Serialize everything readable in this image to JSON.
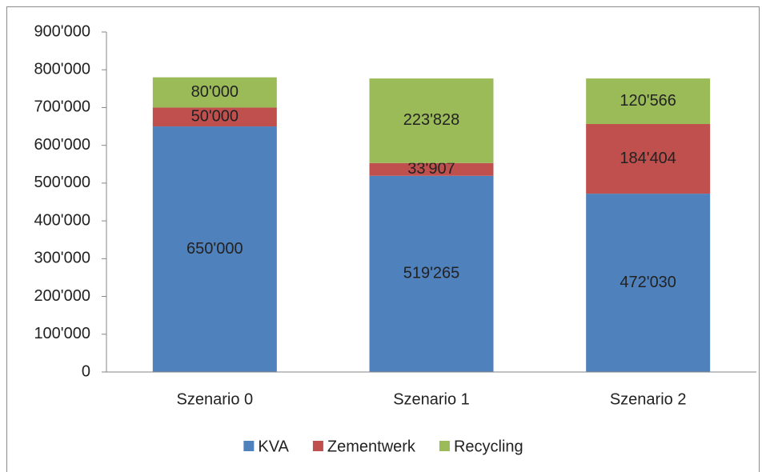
{
  "chart_data": {
    "type": "stacked_bar",
    "categories": [
      "Szenario 0",
      "Szenario 1",
      "Szenario 2"
    ],
    "series": [
      {
        "name": "KVA",
        "color": "#4f81bd",
        "values": [
          650000,
          519265,
          472030
        ],
        "value_labels": [
          "650'000",
          "519'265",
          "472'030"
        ]
      },
      {
        "name": "Zementwerk",
        "color": "#c0504d",
        "values": [
          50000,
          33907,
          184404
        ],
        "value_labels": [
          "50'000",
          "33'907",
          "184'404"
        ]
      },
      {
        "name": "Recycling",
        "color": "#9bbb59",
        "values": [
          80000,
          223828,
          120566
        ],
        "value_labels": [
          "80'000",
          "223'828",
          "120'566"
        ]
      }
    ],
    "ylim": [
      0,
      900000
    ],
    "yticks": [
      {
        "value": 0,
        "label": "0"
      },
      {
        "value": 100000,
        "label": "100'000"
      },
      {
        "value": 200000,
        "label": "200'000"
      },
      {
        "value": 300000,
        "label": "300'000"
      },
      {
        "value": 400000,
        "label": "400'000"
      },
      {
        "value": 500000,
        "label": "500'000"
      },
      {
        "value": 600000,
        "label": "600'000"
      },
      {
        "value": 700000,
        "label": "700'000"
      },
      {
        "value": 800000,
        "label": "800'000"
      },
      {
        "value": 900000,
        "label": "900'000"
      }
    ],
    "grid": false,
    "legend": "bottom"
  }
}
